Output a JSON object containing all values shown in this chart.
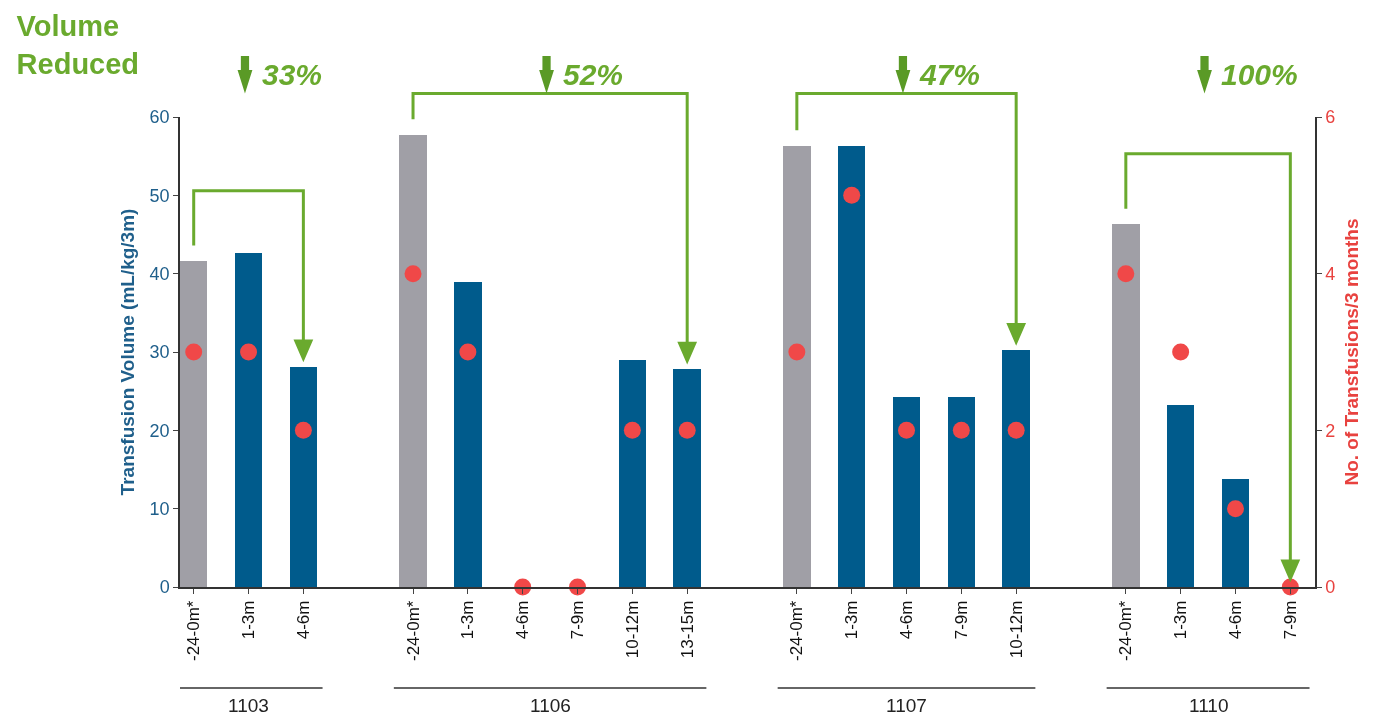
{
  "chart_data": {
    "type": "bar",
    "title": "Volume Reduced",
    "categories": [
      "-24-0m*",
      "1-3m",
      "4-6m",
      null,
      "-24-0m*",
      "1-3m",
      "4-6m",
      "7-9m",
      "10-12m",
      "13-15m",
      null,
      "-24-0m*",
      "1-3m",
      "4-6m",
      "7-9m",
      "10-12m",
      null,
      "-24-0m*",
      "1-3m",
      "4-6m",
      "7-9m"
    ],
    "series": [
      {
        "colors": [
          "#a09fa6",
          "#005b8c",
          "#005b8c",
          null,
          "#a09fa6",
          "#005b8c",
          "#005b8c",
          "#005b8c",
          "#005b8c",
          "#005b8c",
          null,
          "#a09fa6",
          "#005b8c",
          "#005b8c",
          "#005b8c",
          "#005b8c",
          null,
          "#a09fa6",
          "#005b8c",
          "#005b8c",
          "#005b8c"
        ],
        "values": [
          41.6,
          42.6,
          28.1,
          null,
          57.7,
          38.9,
          0,
          0,
          29.0,
          27.8,
          null,
          56.3,
          56.3,
          24.2,
          24.2,
          30.2,
          null,
          46.3,
          23.2,
          13.8,
          0
        ]
      },
      {
        "type": "scatter",
        "axis": "y2",
        "marker": "circle",
        "color": "#f04848",
        "values": [
          3,
          3,
          2,
          null,
          4,
          3,
          0,
          0,
          2,
          2,
          null,
          3,
          5,
          2,
          2,
          2,
          null,
          4,
          3,
          1,
          0
        ]
      }
    ],
    "ylabel": "Transfusion Volume (mL/kg/3m)",
    "y2label": "No. of Transfusions/3 months",
    "ylim": [
      0,
      60
    ],
    "yticks": [
      0,
      10,
      20,
      30,
      40,
      50,
      60
    ],
    "y2lim": [
      0,
      6
    ],
    "y2ticks": [
      0,
      2,
      4,
      6
    ],
    "annotations": [
      "33%",
      "52%",
      "47%",
      "100%",
      "1103",
      "1106",
      "1107",
      "1110"
    ]
  }
}
